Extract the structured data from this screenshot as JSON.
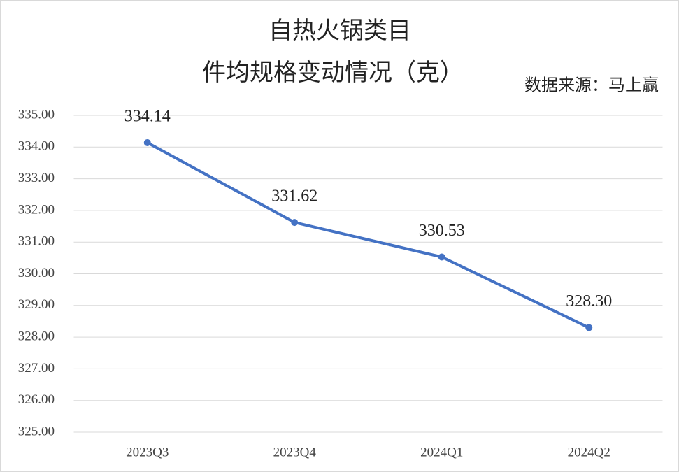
{
  "chart_data": {
    "type": "line",
    "title": "自热火锅类目",
    "subtitle": "件均规格变动情况（克）",
    "annotation": "数据来源：马上赢",
    "categories": [
      "2023Q3",
      "2023Q4",
      "2024Q1",
      "2024Q2"
    ],
    "series": [
      {
        "name": "件均规格",
        "color": "#4472c4",
        "values": [
          334.14,
          331.62,
          330.53,
          328.3
        ],
        "value_labels": [
          "334.14",
          "331.62",
          "330.53",
          "328.30"
        ]
      }
    ],
    "ylim": [
      325,
      335
    ],
    "yticks": [
      {
        "value": 325,
        "label": "325.00"
      },
      {
        "value": 326,
        "label": "326.00"
      },
      {
        "value": 327,
        "label": "327.00"
      },
      {
        "value": 328,
        "label": "328.00"
      },
      {
        "value": 329,
        "label": "329.00"
      },
      {
        "value": 330,
        "label": "330.00"
      },
      {
        "value": 331,
        "label": "331.00"
      },
      {
        "value": 332,
        "label": "332.00"
      },
      {
        "value": 333,
        "label": "333.00"
      },
      {
        "value": 334,
        "label": "334.00"
      },
      {
        "value": 335,
        "label": "335.00"
      }
    ],
    "grid": true
  }
}
